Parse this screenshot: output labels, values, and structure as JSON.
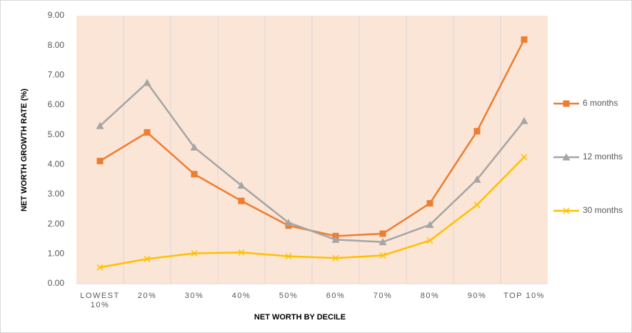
{
  "chart_data": {
    "type": "line",
    "xlabel": "NET WORTH BY DECILE",
    "ylabel": "NET WORTH GROWTH RATE (%)",
    "categories": [
      "LOWEST 10%",
      "20%",
      "30%",
      "40%",
      "50%",
      "60%",
      "70%",
      "80%",
      "90%",
      "TOP 10%"
    ],
    "series": [
      {
        "name": "6 months",
        "color": "#ed7d31",
        "marker": "square",
        "values": [
          4.12,
          5.08,
          3.68,
          2.78,
          1.95,
          1.6,
          1.68,
          2.7,
          5.12,
          8.2
        ]
      },
      {
        "name": "12 months",
        "color": "#a5a5a5",
        "marker": "triangle",
        "values": [
          5.3,
          6.75,
          4.58,
          3.3,
          2.05,
          1.48,
          1.4,
          1.98,
          3.5,
          5.47
        ]
      },
      {
        "name": "30 months",
        "color": "#ffc000",
        "marker": "x",
        "values": [
          0.55,
          0.83,
          1.02,
          1.05,
          0.92,
          0.86,
          0.95,
          1.45,
          2.65,
          4.25
        ]
      }
    ],
    "ylim": [
      0,
      9
    ],
    "yticks": [
      {
        "value": 0,
        "label": "0.00"
      },
      {
        "value": 1,
        "label": "1.00"
      },
      {
        "value": 2,
        "label": "2.00"
      },
      {
        "value": 3,
        "label": "3.00"
      },
      {
        "value": 4,
        "label": "4.00"
      },
      {
        "value": 5,
        "label": "5.00"
      },
      {
        "value": 6,
        "label": "6.00"
      },
      {
        "value": 7,
        "label": "7.00"
      },
      {
        "value": 8,
        "label": "8.00"
      },
      {
        "value": 9,
        "label": "9.00"
      }
    ],
    "grid": true,
    "legend": "right"
  }
}
